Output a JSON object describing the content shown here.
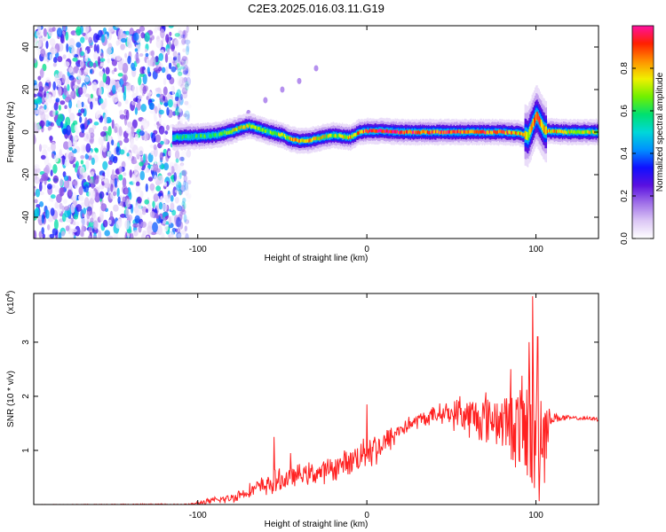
{
  "title": "C2E3.2025.016.03.11.G19",
  "chart_data": [
    {
      "type": "heatmap",
      "xlabel": "Height of straight line (km)",
      "ylabel": "Frequency (Hz)",
      "xlim": [
        -197,
        137
      ],
      "ylim": [
        -50,
        50
      ],
      "x_ticks": [
        -100,
        0,
        100
      ],
      "y_ticks": [
        -40,
        -20,
        0,
        20,
        40
      ],
      "colorbar": {
        "label": "Normalized spectral amplitude",
        "range": [
          0.0,
          1.0
        ],
        "ticks": [
          0.0,
          0.2,
          0.4,
          0.6,
          0.8
        ],
        "colormap": [
          "#ffffff",
          "#dcc7f5",
          "#a070e8",
          "#5a10e0",
          "#1010ff",
          "#0090ff",
          "#00d8d8",
          "#00e070",
          "#70f000",
          "#f0f000",
          "#ff9000",
          "#ff2000",
          "#ff10a0"
        ]
      },
      "noise_region": {
        "x_range": [
          -197,
          -105
        ],
        "freq_range": [
          -50,
          50
        ],
        "typical_amplitude": 0.25
      },
      "signal_track": [
        {
          "x": -115,
          "freq": -2.5,
          "amp": 0.55
        },
        {
          "x": -100,
          "freq": -2.0,
          "amp": 0.55
        },
        {
          "x": -90,
          "freq": -1.5,
          "amp": 0.6
        },
        {
          "x": -80,
          "freq": 0.5,
          "amp": 0.7
        },
        {
          "x": -75,
          "freq": 2.0,
          "amp": 0.75
        },
        {
          "x": -70,
          "freq": 3.0,
          "amp": 0.7
        },
        {
          "x": -60,
          "freq": 0.5,
          "amp": 0.6
        },
        {
          "x": -50,
          "freq": -1.5,
          "amp": 0.7
        },
        {
          "x": -45,
          "freq": -3.5,
          "amp": 0.8
        },
        {
          "x": -40,
          "freq": -4.0,
          "amp": 0.75
        },
        {
          "x": -35,
          "freq": -4.0,
          "amp": 0.8
        },
        {
          "x": -30,
          "freq": -3.0,
          "amp": 0.75
        },
        {
          "x": -20,
          "freq": -1.5,
          "amp": 0.7
        },
        {
          "x": -10,
          "freq": -2.5,
          "amp": 0.75
        },
        {
          "x": -5,
          "freq": 0.0,
          "amp": 0.8
        },
        {
          "x": 0,
          "freq": 0.5,
          "amp": 0.9
        },
        {
          "x": 10,
          "freq": 0.5,
          "amp": 0.95
        },
        {
          "x": 20,
          "freq": 0.0,
          "amp": 0.9
        },
        {
          "x": 40,
          "freq": 0.0,
          "amp": 0.9
        },
        {
          "x": 60,
          "freq": 0.0,
          "amp": 0.9
        },
        {
          "x": 80,
          "freq": 0.0,
          "amp": 0.85
        },
        {
          "x": 90,
          "freq": -0.5,
          "amp": 0.8
        },
        {
          "x": 95,
          "freq": -2.0,
          "amp": 0.75
        },
        {
          "x": 100,
          "freq": 8.0,
          "amp": 0.85
        },
        {
          "x": 105,
          "freq": 0.5,
          "amp": 0.8
        },
        {
          "x": 120,
          "freq": 0.0,
          "amp": 0.75
        },
        {
          "x": 137,
          "freq": 0.0,
          "amp": 0.7
        }
      ],
      "faint_arc": [
        {
          "x": -70,
          "freq": 9.0
        },
        {
          "x": -60,
          "freq": 15.0
        },
        {
          "x": -50,
          "freq": 20.0
        },
        {
          "x": -40,
          "freq": 24.0
        },
        {
          "x": -30,
          "freq": 30.0
        }
      ]
    },
    {
      "type": "line",
      "xlabel": "Height of straight line (km)",
      "ylabel": "SNR (10 * v/v)",
      "y_multiplier_label": "(x10",
      "y_multiplier_exp": "4",
      "y_multiplier_close": ")",
      "xlim": [
        -197,
        137
      ],
      "ylim": [
        0,
        3.9
      ],
      "x_ticks": [
        -100,
        0,
        100
      ],
      "y_ticks": [
        1,
        2,
        3
      ],
      "line_color": "#ff2020",
      "envelope": [
        {
          "x": -197,
          "mean": 0.0,
          "noise": 0.0
        },
        {
          "x": -105,
          "mean": 0.0,
          "noise": 0.02
        },
        {
          "x": -95,
          "mean": 0.05,
          "noise": 0.06
        },
        {
          "x": -80,
          "mean": 0.12,
          "noise": 0.1
        },
        {
          "x": -70,
          "mean": 0.25,
          "noise": 0.14
        },
        {
          "x": -55,
          "mean": 0.4,
          "noise": 0.25
        },
        {
          "x": -40,
          "mean": 0.55,
          "noise": 0.2
        },
        {
          "x": -25,
          "mean": 0.6,
          "noise": 0.25
        },
        {
          "x": -10,
          "mean": 0.8,
          "noise": 0.25
        },
        {
          "x": 0,
          "mean": 1.0,
          "noise": 0.4
        },
        {
          "x": 10,
          "mean": 1.1,
          "noise": 0.3
        },
        {
          "x": 20,
          "mean": 1.4,
          "noise": 0.2
        },
        {
          "x": 30,
          "mean": 1.55,
          "noise": 0.15
        },
        {
          "x": 45,
          "mean": 1.7,
          "noise": 0.2
        },
        {
          "x": 55,
          "mean": 1.65,
          "noise": 0.35
        },
        {
          "x": 65,
          "mean": 1.6,
          "noise": 0.5
        },
        {
          "x": 75,
          "mean": 1.6,
          "noise": 0.55
        },
        {
          "x": 85,
          "mean": 1.5,
          "noise": 0.65
        },
        {
          "x": 92,
          "mean": 1.4,
          "noise": 1.1
        },
        {
          "x": 100,
          "mean": 1.3,
          "noise": 1.6
        },
        {
          "x": 105,
          "mean": 1.3,
          "noise": 1.2
        },
        {
          "x": 108,
          "mean": 1.6,
          "noise": 0.15
        },
        {
          "x": 120,
          "mean": 1.6,
          "noise": 0.04
        },
        {
          "x": 137,
          "mean": 1.58,
          "noise": 0.04
        }
      ],
      "spikes": [
        {
          "x": -55,
          "y": 1.25
        },
        {
          "x": -45,
          "y": 0.95
        },
        {
          "x": 0,
          "y": 1.85
        },
        {
          "x": 55,
          "y": 2.0
        },
        {
          "x": 85,
          "y": 2.5
        },
        {
          "x": 96,
          "y": 3.0
        },
        {
          "x": 98,
          "y": 3.85
        },
        {
          "x": 101,
          "y": 3.1
        }
      ]
    }
  ]
}
